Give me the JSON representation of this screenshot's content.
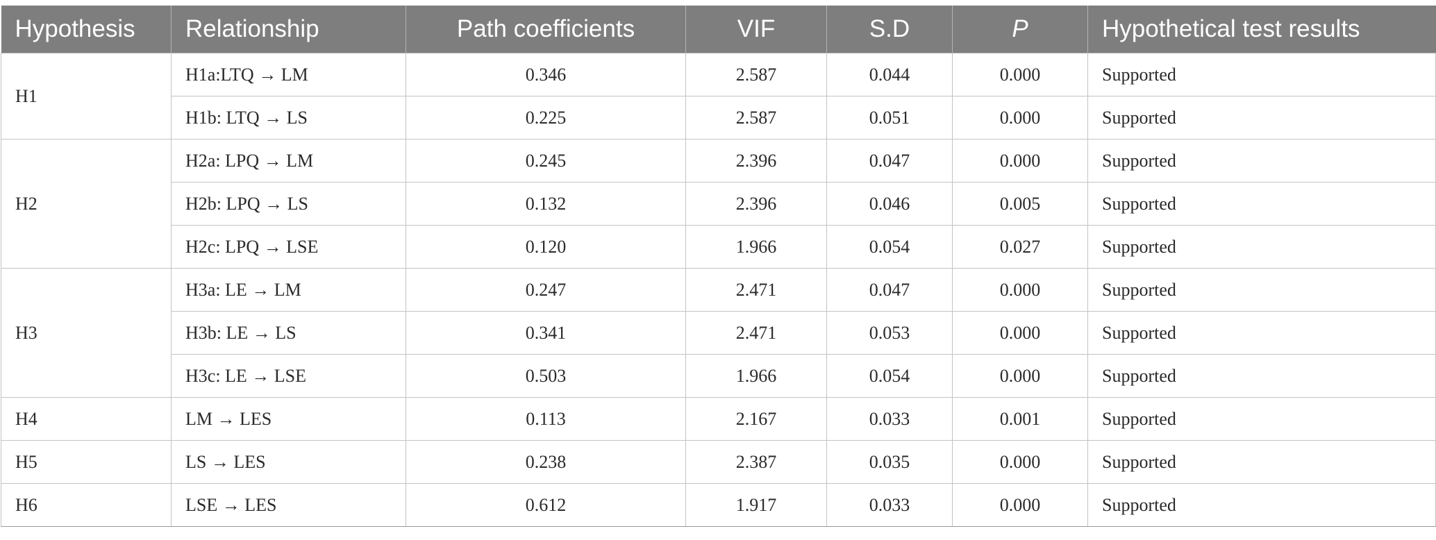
{
  "table": {
    "headers": {
      "hypothesis": "Hypothesis",
      "relationship": "Relationship",
      "path": "Path coefficients",
      "vif": "VIF",
      "sd": "S.D",
      "p": "P",
      "result": "Hypothetical test results"
    },
    "groups": [
      {
        "hypothesis": "H1",
        "rows": [
          {
            "relationship": "H1a:LTQ → LM",
            "path": "0.346",
            "vif": "2.587",
            "sd": "0.044",
            "p": "0.000",
            "result": "Supported"
          },
          {
            "relationship": "H1b: LTQ → LS",
            "path": "0.225",
            "vif": "2.587",
            "sd": "0.051",
            "p": "0.000",
            "result": "Supported"
          }
        ]
      },
      {
        "hypothesis": "H2",
        "rows": [
          {
            "relationship": "H2a: LPQ → LM",
            "path": "0.245",
            "vif": "2.396",
            "sd": "0.047",
            "p": "0.000",
            "result": "Supported"
          },
          {
            "relationship": "H2b: LPQ → LS",
            "path": "0.132",
            "vif": "2.396",
            "sd": "0.046",
            "p": "0.005",
            "result": "Supported"
          },
          {
            "relationship": "H2c: LPQ → LSE",
            "path": "0.120",
            "vif": "1.966",
            "sd": "0.054",
            "p": "0.027",
            "result": "Supported"
          }
        ]
      },
      {
        "hypothesis": "H3",
        "rows": [
          {
            "relationship": "H3a: LE → LM",
            "path": "0.247",
            "vif": "2.471",
            "sd": "0.047",
            "p": "0.000",
            "result": "Supported"
          },
          {
            "relationship": "H3b: LE → LS",
            "path": "0.341",
            "vif": "2.471",
            "sd": "0.053",
            "p": "0.000",
            "result": "Supported"
          },
          {
            "relationship": "H3c: LE → LSE",
            "path": "0.503",
            "vif": "1.966",
            "sd": "0.054",
            "p": "0.000",
            "result": "Supported"
          }
        ]
      },
      {
        "hypothesis": "H4",
        "rows": [
          {
            "relationship": "LM → LES",
            "path": "0.113",
            "vif": "2.167",
            "sd": "0.033",
            "p": "0.001",
            "result": "Supported"
          }
        ]
      },
      {
        "hypothesis": "H5",
        "rows": [
          {
            "relationship": "LS → LES",
            "path": "0.238",
            "vif": "2.387",
            "sd": "0.035",
            "p": "0.000",
            "result": "Supported"
          }
        ]
      },
      {
        "hypothesis": "H6",
        "rows": [
          {
            "relationship": "LSE → LES",
            "path": "0.612",
            "vif": "1.917",
            "sd": "0.033",
            "p": "0.000",
            "result": "Supported"
          }
        ]
      }
    ]
  }
}
